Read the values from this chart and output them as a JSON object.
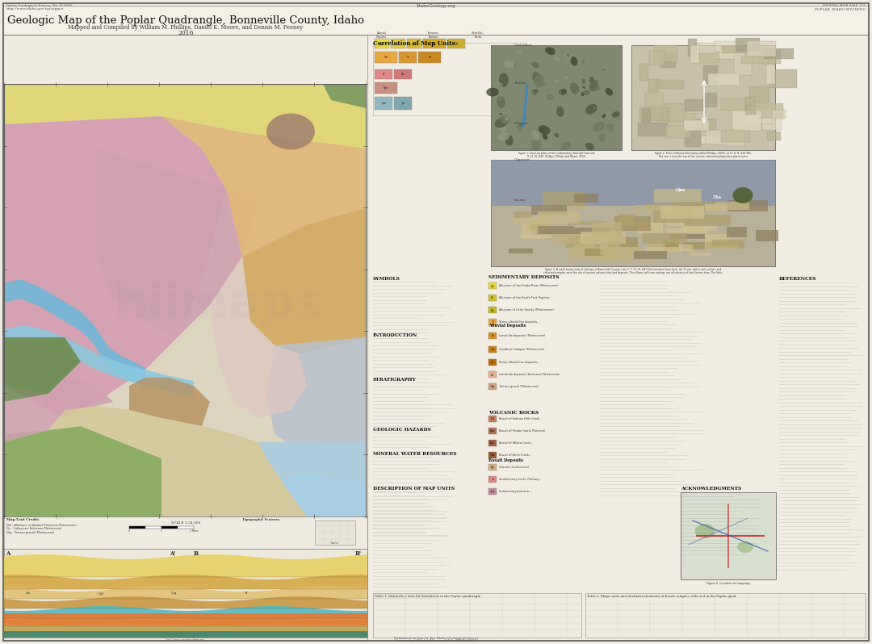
{
  "title": "Geologic Map of the Poplar Quadrangle, Bonneville County, Idaho",
  "subtitle": "Mapped and Compiled by William M. Phillips, Daniel K. Moore, and Dennis M. Feeney",
  "year": "2016",
  "bg_color": "#f2ede3",
  "border_color": "#444444",
  "map_colors": {
    "pink_main": "#d9a8b8",
    "pink_med": "#cda0b0",
    "orange_tan": "#e0b87a",
    "light_orange": "#e8c888",
    "yellow_top": "#e0d878",
    "yellow_green": "#c8d070",
    "blue_river": "#7abcdc",
    "blue_light": "#a8cce0",
    "teal_green": "#78a870",
    "olive_green": "#8a9850",
    "dark_olive": "#6a7840",
    "gray_blue": "#b8c0cc",
    "gray_med": "#c0c0b8",
    "tan_light": "#d8c8a8",
    "brown_tan": "#b89870",
    "brown_dark": "#907050",
    "salmon": "#e8a888",
    "mauve": "#c8a0b0",
    "cream": "#e8e0c8",
    "teal_dark": "#508070",
    "green_mid": "#90b070",
    "orange_warm": "#d09050",
    "yellow_bright": "#e8d448"
  },
  "watermark": "hiimaps",
  "corr_title": "Correlation of Map Units",
  "header_small_left1": "Idaho Geological Survey, No. R-2016",
  "header_small_left2": "http://www.idaho.gov/igssupgeo",
  "header_small_right1": "DIGITAL WEB MAP 175",
  "header_small_right2": "POPLAR, IDAHO-WYOMING",
  "header_center": "IdahoGeology.org"
}
